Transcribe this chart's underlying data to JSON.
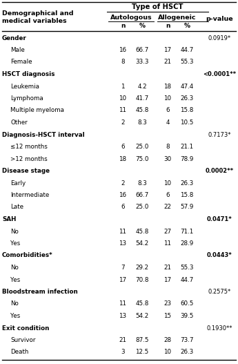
{
  "title": "Type of HSCT",
  "col_header_auto": "Autologous",
  "col_header_allo": "Allogeneic",
  "col_header_pval": "p-value",
  "rows": [
    {
      "label": "Gender",
      "bold": true,
      "indent": false,
      "auto_n": "",
      "auto_pct": "",
      "allo_n": "",
      "allo_pct": "",
      "pvalue": "0.0919*",
      "pvalue_bold": false
    },
    {
      "label": "Male",
      "bold": false,
      "indent": true,
      "auto_n": "16",
      "auto_pct": "66.7",
      "allo_n": "17",
      "allo_pct": "44.7",
      "pvalue": "",
      "pvalue_bold": false
    },
    {
      "label": "Female",
      "bold": false,
      "indent": true,
      "auto_n": "8",
      "auto_pct": "33.3",
      "allo_n": "21",
      "allo_pct": "55.3",
      "pvalue": "",
      "pvalue_bold": false
    },
    {
      "label": "HSCT diagnosis",
      "bold": true,
      "indent": false,
      "auto_n": "",
      "auto_pct": "",
      "allo_n": "",
      "allo_pct": "",
      "pvalue": "<0.0001**",
      "pvalue_bold": true
    },
    {
      "label": "Leukemia",
      "bold": false,
      "indent": true,
      "auto_n": "1",
      "auto_pct": "4.2",
      "allo_n": "18",
      "allo_pct": "47.4",
      "pvalue": "",
      "pvalue_bold": false
    },
    {
      "label": "Lymphoma",
      "bold": false,
      "indent": true,
      "auto_n": "10",
      "auto_pct": "41.7",
      "allo_n": "10",
      "allo_pct": "26.3",
      "pvalue": "",
      "pvalue_bold": false
    },
    {
      "label": "Multiple myeloma",
      "bold": false,
      "indent": true,
      "auto_n": "11",
      "auto_pct": "45.8",
      "allo_n": "6",
      "allo_pct": "15.8",
      "pvalue": "",
      "pvalue_bold": false
    },
    {
      "label": "Other",
      "bold": false,
      "indent": true,
      "auto_n": "2",
      "auto_pct": "8.3",
      "allo_n": "4",
      "allo_pct": "10.5",
      "pvalue": "",
      "pvalue_bold": false
    },
    {
      "label": "Diagnosis-HSCT interval",
      "bold": true,
      "indent": false,
      "auto_n": "",
      "auto_pct": "",
      "allo_n": "",
      "allo_pct": "",
      "pvalue": "0.7173*",
      "pvalue_bold": false
    },
    {
      "label": "≤12 months",
      "bold": false,
      "indent": true,
      "auto_n": "6",
      "auto_pct": "25.0",
      "allo_n": "8",
      "allo_pct": "21.1",
      "pvalue": "",
      "pvalue_bold": false
    },
    {
      "label": ">12 months",
      "bold": false,
      "indent": true,
      "auto_n": "18",
      "auto_pct": "75.0",
      "allo_n": "30",
      "allo_pct": "78.9",
      "pvalue": "",
      "pvalue_bold": false
    },
    {
      "label": "Disease stage",
      "bold": true,
      "indent": false,
      "auto_n": "",
      "auto_pct": "",
      "allo_n": "",
      "allo_pct": "",
      "pvalue": "0.0002**",
      "pvalue_bold": true
    },
    {
      "label": "Early",
      "bold": false,
      "indent": true,
      "auto_n": "2",
      "auto_pct": "8.3",
      "allo_n": "10",
      "allo_pct": "26.3",
      "pvalue": "",
      "pvalue_bold": false
    },
    {
      "label": "Intermediate",
      "bold": false,
      "indent": true,
      "auto_n": "16",
      "auto_pct": "66.7",
      "allo_n": "6",
      "allo_pct": "15.8",
      "pvalue": "",
      "pvalue_bold": false
    },
    {
      "label": "Late",
      "bold": false,
      "indent": true,
      "auto_n": "6",
      "auto_pct": "25.0",
      "allo_n": "22",
      "allo_pct": "57.9",
      "pvalue": "",
      "pvalue_bold": false
    },
    {
      "label": "SAH",
      "bold": true,
      "indent": false,
      "auto_n": "",
      "auto_pct": "",
      "allo_n": "",
      "allo_pct": "",
      "pvalue": "0.0471*",
      "pvalue_bold": true
    },
    {
      "label": "No",
      "bold": false,
      "indent": true,
      "auto_n": "11",
      "auto_pct": "45.8",
      "allo_n": "27",
      "allo_pct": "71.1",
      "pvalue": "",
      "pvalue_bold": false
    },
    {
      "label": "Yes",
      "bold": false,
      "indent": true,
      "auto_n": "13",
      "auto_pct": "54.2",
      "allo_n": "11",
      "allo_pct": "28.9",
      "pvalue": "",
      "pvalue_bold": false
    },
    {
      "label": "Comorbidities*",
      "bold": true,
      "indent": false,
      "auto_n": "",
      "auto_pct": "",
      "allo_n": "",
      "allo_pct": "",
      "pvalue": "0.0443*",
      "pvalue_bold": true
    },
    {
      "label": "No",
      "bold": false,
      "indent": true,
      "auto_n": "7",
      "auto_pct": "29.2",
      "allo_n": "21",
      "allo_pct": "55.3",
      "pvalue": "",
      "pvalue_bold": false
    },
    {
      "label": "Yes",
      "bold": false,
      "indent": true,
      "auto_n": "17",
      "auto_pct": "70.8",
      "allo_n": "17",
      "allo_pct": "44.7",
      "pvalue": "",
      "pvalue_bold": false
    },
    {
      "label": "Bloodstream infection",
      "bold": true,
      "indent": false,
      "auto_n": "",
      "auto_pct": "",
      "allo_n": "",
      "allo_pct": "",
      "pvalue": "0.2575*",
      "pvalue_bold": false
    },
    {
      "label": "No",
      "bold": false,
      "indent": true,
      "auto_n": "11",
      "auto_pct": "45.8",
      "allo_n": "23",
      "allo_pct": "60.5",
      "pvalue": "",
      "pvalue_bold": false
    },
    {
      "label": "Yes",
      "bold": false,
      "indent": true,
      "auto_n": "13",
      "auto_pct": "54.2",
      "allo_n": "15",
      "allo_pct": "39.5",
      "pvalue": "",
      "pvalue_bold": false
    },
    {
      "label": "Exit condition",
      "bold": true,
      "indent": false,
      "auto_n": "",
      "auto_pct": "",
      "allo_n": "",
      "allo_pct": "",
      "pvalue": "0.1930**",
      "pvalue_bold": false
    },
    {
      "label": "Survivor",
      "bold": false,
      "indent": true,
      "auto_n": "21",
      "auto_pct": "87.5",
      "allo_n": "28",
      "allo_pct": "73.7",
      "pvalue": "",
      "pvalue_bold": false
    },
    {
      "label": "Death",
      "bold": false,
      "indent": true,
      "auto_n": "3",
      "auto_pct": "12.5",
      "allo_n": "10",
      "allo_pct": "26.3",
      "pvalue": "",
      "pvalue_bold": false
    }
  ],
  "bg_color": "#ffffff",
  "text_color": "#000000",
  "line_color": "#000000",
  "figw": 3.45,
  "figh": 5.27,
  "dpi": 100
}
